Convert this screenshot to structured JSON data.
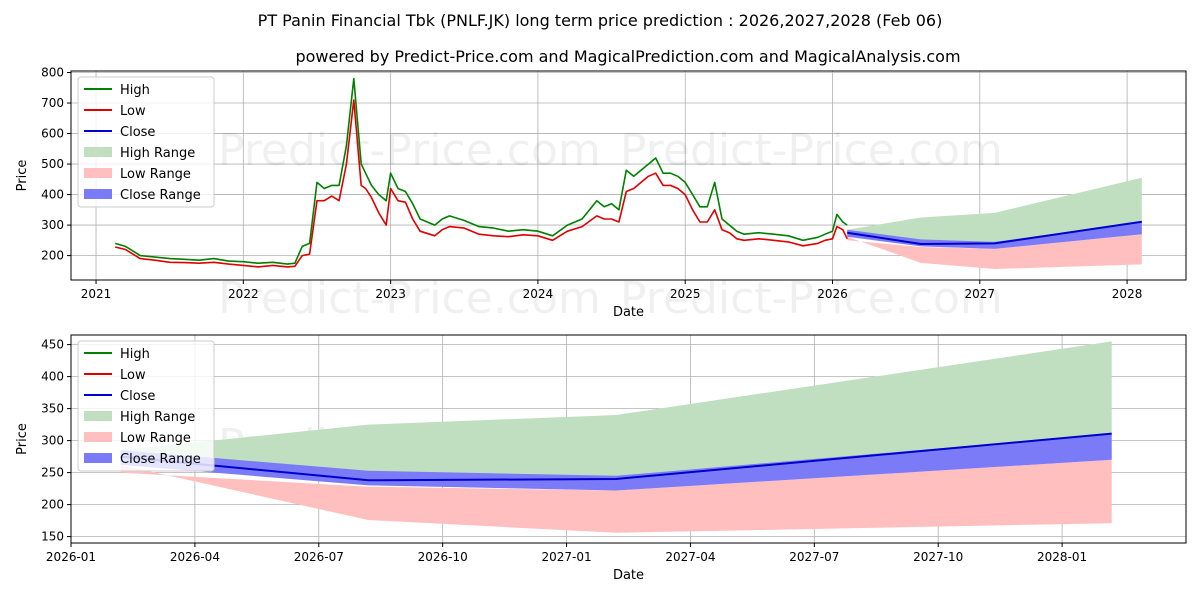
{
  "title": "PT Panin Financial Tbk (PNLF.JK) long term price prediction : 2026,2027,2028 (Feb 06)",
  "subtitle": "powered by Predict-Price.com and MagicalPrediction.com and MagicalAnalysis.com",
  "watermark": "Predict-Price.com",
  "colors": {
    "high": "#008000",
    "low": "#e00000",
    "close": "#0000cc",
    "high_range": "#c0dfc0",
    "low_range": "#ffbfbf",
    "close_range": "#7b7bf7"
  },
  "chart_data": [
    {
      "type": "line",
      "name": "overview",
      "xlabel": "Date",
      "ylabel": "Price",
      "xlim": [
        2020.83,
        2028.4
      ],
      "ylim": [
        120,
        805
      ],
      "x_ticks": [
        {
          "v": 2021,
          "label": "2021"
        },
        {
          "v": 2022,
          "label": "2022"
        },
        {
          "v": 2023,
          "label": "2023"
        },
        {
          "v": 2024,
          "label": "2024"
        },
        {
          "v": 2025,
          "label": "2025"
        },
        {
          "v": 2026,
          "label": "2026"
        },
        {
          "v": 2027,
          "label": "2027"
        },
        {
          "v": 2028,
          "label": "2028"
        }
      ],
      "y_ticks": [
        {
          "v": 200,
          "label": "200"
        },
        {
          "v": 300,
          "label": "300"
        },
        {
          "v": 400,
          "label": "400"
        },
        {
          "v": 500,
          "label": "500"
        },
        {
          "v": 600,
          "label": "600"
        },
        {
          "v": 700,
          "label": "700"
        },
        {
          "v": 800,
          "label": "800"
        }
      ],
      "grid": true,
      "legend": [
        "High",
        "Low",
        "Close",
        "High Range",
        "Low Range",
        "Close Range"
      ],
      "legend_position": "top-left",
      "history": {
        "x": [
          2021.13,
          2021.2,
          2021.3,
          2021.4,
          2021.5,
          2021.6,
          2021.7,
          2021.8,
          2021.9,
          2022.0,
          2022.1,
          2022.2,
          2022.3,
          2022.35,
          2022.4,
          2022.45,
          2022.5,
          2022.55,
          2022.6,
          2022.65,
          2022.7,
          2022.75,
          2022.8,
          2022.83,
          2022.87,
          2022.92,
          2022.97,
          2023.0,
          2023.05,
          2023.1,
          2023.15,
          2023.2,
          2023.3,
          2023.35,
          2023.4,
          2023.5,
          2023.6,
          2023.7,
          2023.8,
          2023.9,
          2024.0,
          2024.1,
          2024.2,
          2024.3,
          2024.4,
          2024.45,
          2024.5,
          2024.55,
          2024.6,
          2024.65,
          2024.7,
          2024.75,
          2024.8,
          2024.85,
          2024.9,
          2024.95,
          2025.0,
          2025.05,
          2025.1,
          2025.15,
          2025.2,
          2025.25,
          2025.3,
          2025.35,
          2025.4,
          2025.5,
          2025.6,
          2025.7,
          2025.8,
          2025.9,
          2025.95,
          2026.0,
          2026.03,
          2026.07,
          2026.1
        ],
        "high": [
          240,
          230,
          200,
          195,
          190,
          188,
          185,
          190,
          182,
          180,
          175,
          178,
          172,
          175,
          230,
          240,
          440,
          420,
          430,
          430,
          560,
          780,
          500,
          470,
          430,
          400,
          380,
          470,
          420,
          410,
          370,
          320,
          300,
          320,
          330,
          315,
          295,
          290,
          280,
          285,
          280,
          265,
          300,
          320,
          380,
          360,
          370,
          350,
          480,
          460,
          480,
          500,
          520,
          470,
          470,
          460,
          440,
          400,
          360,
          360,
          440,
          320,
          300,
          280,
          270,
          275,
          270,
          265,
          250,
          260,
          270,
          280,
          335,
          310,
          300
        ],
        "low": [
          228,
          220,
          190,
          185,
          178,
          177,
          175,
          178,
          172,
          168,
          163,
          168,
          163,
          165,
          200,
          205,
          380,
          380,
          395,
          380,
          500,
          710,
          430,
          420,
          390,
          340,
          300,
          420,
          380,
          375,
          320,
          280,
          265,
          285,
          295,
          290,
          270,
          265,
          262,
          268,
          265,
          250,
          280,
          295,
          330,
          320,
          320,
          310,
          410,
          420,
          440,
          460,
          470,
          430,
          430,
          420,
          400,
          350,
          310,
          310,
          350,
          285,
          275,
          255,
          250,
          255,
          250,
          245,
          232,
          240,
          250,
          255,
          295,
          285,
          255
        ]
      },
      "forecast": {
        "x": [
          2026.1,
          2026.6,
          2027.1,
          2028.1
        ],
        "close": [
          275,
          238,
          240,
          311
        ],
        "high_range": [
          [
            285,
            270
          ],
          [
            325,
            238
          ],
          [
            340,
            225
          ],
          [
            455,
            270
          ]
        ],
        "low_range": [
          [
            262,
            250
          ],
          [
            176,
            228
          ],
          [
            156,
            222
          ],
          [
            171,
            270
          ]
        ],
        "close_range": [
          [
            285,
            262
          ],
          [
            253,
            230
          ],
          [
            245,
            222
          ],
          [
            311,
            270
          ]
        ]
      }
    },
    {
      "type": "area",
      "name": "forecast-zoom",
      "xlabel": "Date",
      "ylabel": "Price",
      "xlim": [
        2026.0,
        2028.25
      ],
      "ylim": [
        140,
        465
      ],
      "x_ticks": [
        {
          "v": 2026.0,
          "label": "2026-01"
        },
        {
          "v": 2026.25,
          "label": "2026-04"
        },
        {
          "v": 2026.5,
          "label": "2026-07"
        },
        {
          "v": 2026.75,
          "label": "2026-10"
        },
        {
          "v": 2027.0,
          "label": "2027-01"
        },
        {
          "v": 2027.25,
          "label": "2027-04"
        },
        {
          "v": 2027.5,
          "label": "2027-07"
        },
        {
          "v": 2027.75,
          "label": "2027-10"
        },
        {
          "v": 2028.0,
          "label": "2028-01"
        }
      ],
      "y_ticks": [
        {
          "v": 150,
          "label": "150"
        },
        {
          "v": 200,
          "label": "200"
        },
        {
          "v": 250,
          "label": "250"
        },
        {
          "v": 300,
          "label": "300"
        },
        {
          "v": 350,
          "label": "350"
        },
        {
          "v": 400,
          "label": "400"
        },
        {
          "v": 450,
          "label": "450"
        }
      ],
      "grid": true,
      "legend": [
        "High",
        "Low",
        "Close",
        "High Range",
        "Low Range",
        "Close Range"
      ],
      "legend_position": "top-left",
      "forecast": {
        "x": [
          2026.1,
          2026.6,
          2027.1,
          2028.1
        ],
        "close": [
          275,
          238,
          240,
          311
        ],
        "high_range": [
          [
            285,
            270
          ],
          [
            325,
            238
          ],
          [
            340,
            225
          ],
          [
            455,
            270
          ]
        ],
        "low_range": [
          [
            262,
            250
          ],
          [
            176,
            228
          ],
          [
            156,
            222
          ],
          [
            171,
            270
          ]
        ],
        "close_range": [
          [
            285,
            262
          ],
          [
            253,
            230
          ],
          [
            245,
            222
          ],
          [
            311,
            270
          ]
        ]
      }
    }
  ]
}
